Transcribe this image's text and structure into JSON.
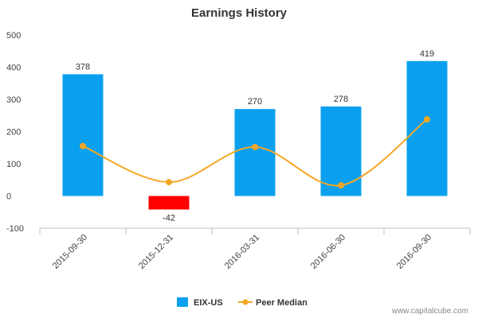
{
  "chart_data": {
    "type": "bar",
    "title": "Earnings History",
    "categories": [
      "2015-09-30",
      "2015-12-31",
      "2016-03-31",
      "2016-06-30",
      "2016-09-30"
    ],
    "series": [
      {
        "name": "EIX-US",
        "kind": "bar",
        "values": [
          378,
          -42,
          270,
          278,
          419
        ],
        "data_labels": [
          "378",
          "-42",
          "270",
          "278",
          "419"
        ],
        "color": "#0aa0ef",
        "negative_color": "#ff0000"
      },
      {
        "name": "Peer Median",
        "kind": "line",
        "values": [
          155,
          43,
          152,
          33,
          238
        ],
        "color": "#f5a623"
      }
    ],
    "ylim": [
      -100,
      500
    ],
    "yticks": [
      -100,
      0,
      100,
      200,
      300,
      400,
      500
    ],
    "ytick_labels": [
      "-100",
      "0",
      "100",
      "200",
      "300",
      "400",
      "500"
    ],
    "grid": false,
    "legend": "bottom-center"
  },
  "credit": "www.capitalcube.com"
}
